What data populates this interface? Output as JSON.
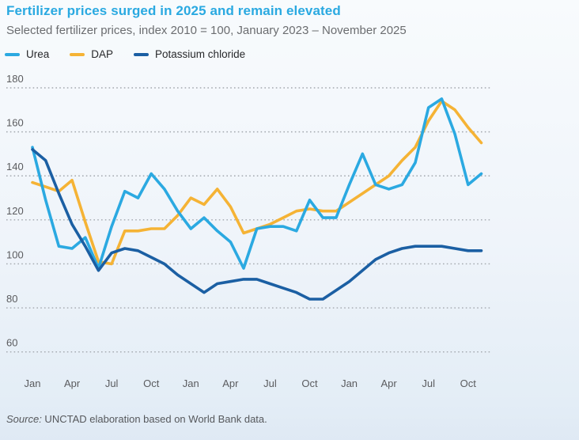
{
  "header": {
    "title": "Fertilizer prices surged in 2025 and remain elevated",
    "subtitle": "Selected fertilizer prices, index 2010 = 100, January 2023 – November 2025"
  },
  "footer": {
    "source_prefix": "Source:",
    "source_text": " UNCTAD elaboration based on World Bank data."
  },
  "chart_data": {
    "type": "line",
    "title": "Fertilizer prices surged in 2025 and remain elevated",
    "subtitle": "Selected fertilizer prices, index 2010 = 100, January 2023 – November 2025",
    "index_note": "index 2010 = 100",
    "x_start": "2023-01",
    "x_end": "2025-11",
    "points_per_series": 35,
    "x_tick_labels": [
      "Jan",
      "Apr",
      "Jul",
      "Oct",
      "Jan",
      "Apr",
      "Jul",
      "Oct",
      "Jan",
      "Apr",
      "Jul",
      "Oct"
    ],
    "y_ticks": [
      180,
      160,
      140,
      120,
      100,
      80,
      60
    ],
    "ylim": [
      60,
      180
    ],
    "grid": "horizontal-dotted",
    "legend_position": "top-left",
    "series": [
      {
        "name": "Urea",
        "color": "#2BA9E1",
        "values": [
          153,
          129,
          108,
          107,
          112,
          98,
          117,
          133,
          130,
          141,
          134,
          124,
          116,
          121,
          115,
          110,
          98,
          116,
          117,
          117,
          115,
          129,
          121,
          121,
          136,
          150,
          136,
          134,
          136,
          146,
          171,
          175,
          159,
          136,
          141
        ]
      },
      {
        "name": "DAP",
        "color": "#F5B335",
        "values": [
          137,
          135,
          133,
          138,
          119,
          101,
          100,
          115,
          115,
          116,
          116,
          122,
          130,
          127,
          134,
          126,
          114,
          116,
          118,
          121,
          124,
          125,
          124,
          124,
          128,
          132,
          136,
          140,
          147,
          153,
          165,
          174,
          170,
          162,
          155
        ]
      },
      {
        "name": "Potassium chloride",
        "color": "#1B5FA3",
        "values": [
          152,
          147,
          132,
          118,
          108,
          97,
          105,
          107,
          106,
          103,
          100,
          95,
          91,
          87,
          91,
          92,
          93,
          93,
          91,
          89,
          87,
          84,
          84,
          88,
          92,
          97,
          102,
          105,
          107,
          108,
          108,
          108,
          107,
          106,
          106
        ]
      }
    ]
  }
}
